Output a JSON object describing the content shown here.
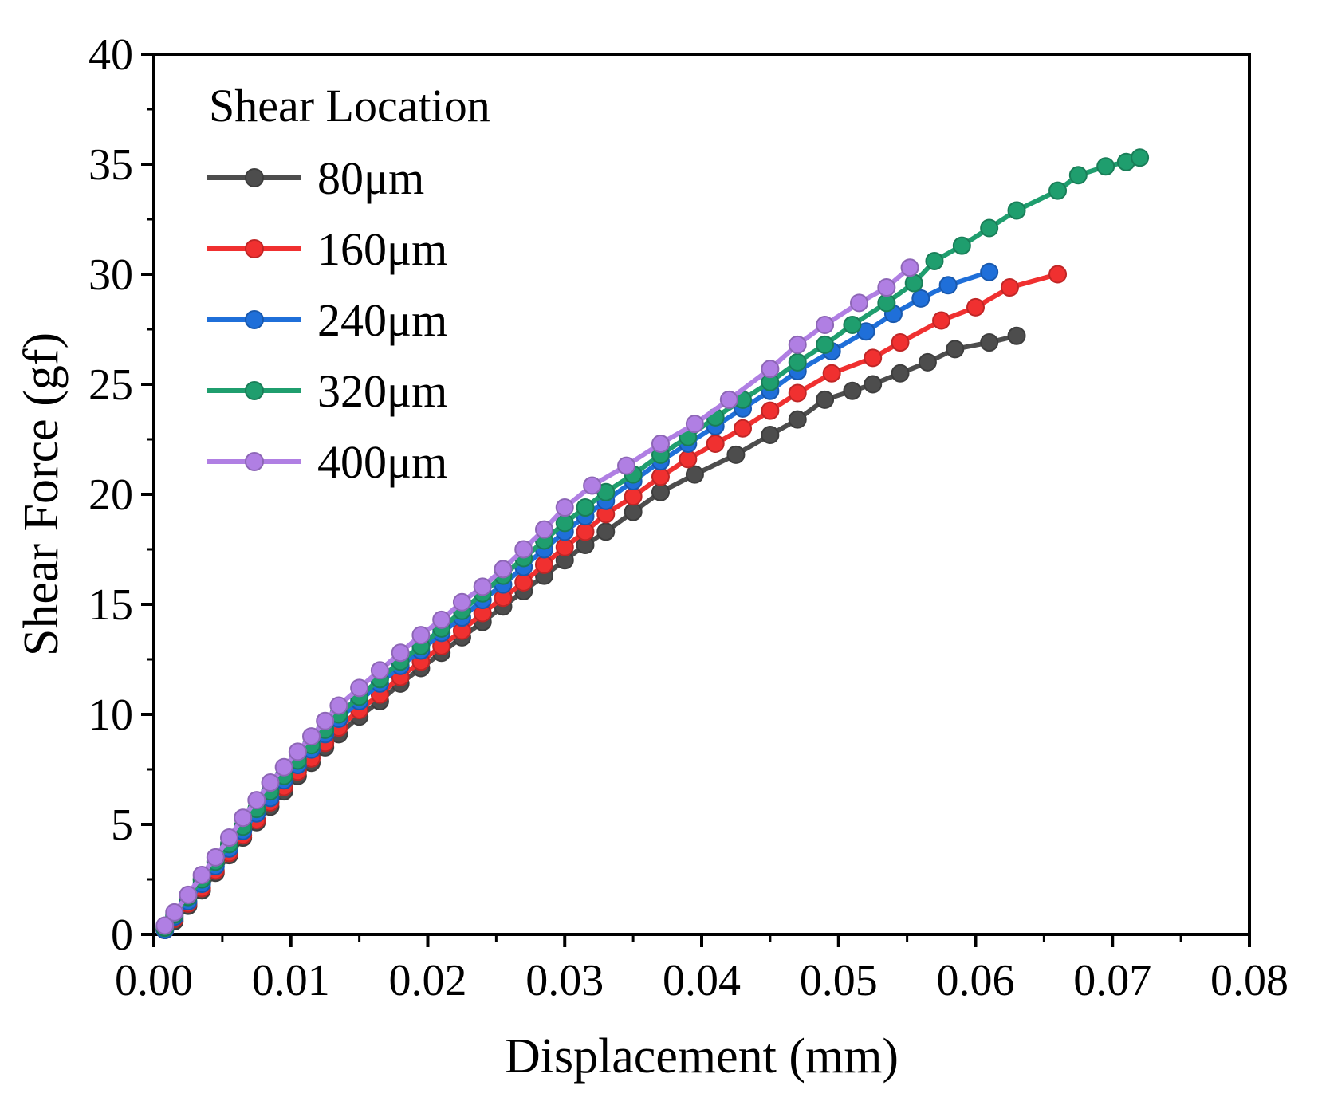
{
  "chart_data": {
    "type": "line",
    "title": "",
    "xlabel": "Displacement (mm)",
    "ylabel": "Shear Force (gf)",
    "xlim": [
      0,
      0.08
    ],
    "ylim": [
      0,
      40
    ],
    "xticks": [
      "0.00",
      "0.01",
      "0.02",
      "0.03",
      "0.04",
      "0.05",
      "0.06",
      "0.07",
      "0.08"
    ],
    "yticks": [
      "0",
      "5",
      "10",
      "15",
      "20",
      "25",
      "30",
      "35",
      "40"
    ],
    "grid": false,
    "legend": {
      "title": "Shear Location",
      "position": "top-left"
    },
    "series": [
      {
        "name": "80μm",
        "color": "#4d4d4d",
        "points": [
          [
            0.0008,
            0.2
          ],
          [
            0.0015,
            0.6
          ],
          [
            0.0025,
            1.3
          ],
          [
            0.0035,
            2.0
          ],
          [
            0.0045,
            2.8
          ],
          [
            0.0055,
            3.6
          ],
          [
            0.0065,
            4.4
          ],
          [
            0.0075,
            5.1
          ],
          [
            0.0085,
            5.8
          ],
          [
            0.0095,
            6.5
          ],
          [
            0.0105,
            7.2
          ],
          [
            0.0115,
            7.8
          ],
          [
            0.0125,
            8.5
          ],
          [
            0.0135,
            9.1
          ],
          [
            0.015,
            9.9
          ],
          [
            0.0165,
            10.6
          ],
          [
            0.018,
            11.4
          ],
          [
            0.0195,
            12.1
          ],
          [
            0.021,
            12.8
          ],
          [
            0.0225,
            13.5
          ],
          [
            0.024,
            14.2
          ],
          [
            0.0255,
            14.9
          ],
          [
            0.027,
            15.6
          ],
          [
            0.0285,
            16.3
          ],
          [
            0.03,
            17.0
          ],
          [
            0.0315,
            17.7
          ],
          [
            0.033,
            18.3
          ],
          [
            0.035,
            19.2
          ],
          [
            0.037,
            20.1
          ],
          [
            0.0395,
            20.9
          ],
          [
            0.0425,
            21.8
          ],
          [
            0.045,
            22.7
          ],
          [
            0.047,
            23.4
          ],
          [
            0.049,
            24.3
          ],
          [
            0.051,
            24.7
          ],
          [
            0.0525,
            25.0
          ],
          [
            0.0545,
            25.5
          ],
          [
            0.0565,
            26.0
          ],
          [
            0.0585,
            26.6
          ],
          [
            0.061,
            26.9
          ],
          [
            0.063,
            27.2
          ]
        ]
      },
      {
        "name": "160μm",
        "color": "#f03030",
        "points": [
          [
            0.0008,
            0.2
          ],
          [
            0.0015,
            0.7
          ],
          [
            0.0025,
            1.4
          ],
          [
            0.0035,
            2.1
          ],
          [
            0.0045,
            2.9
          ],
          [
            0.0055,
            3.7
          ],
          [
            0.0065,
            4.5
          ],
          [
            0.0075,
            5.2
          ],
          [
            0.0085,
            6.0
          ],
          [
            0.0095,
            6.7
          ],
          [
            0.0105,
            7.4
          ],
          [
            0.0115,
            8.0
          ],
          [
            0.0125,
            8.7
          ],
          [
            0.0135,
            9.4
          ],
          [
            0.015,
            10.2
          ],
          [
            0.0165,
            10.9
          ],
          [
            0.018,
            11.7
          ],
          [
            0.0195,
            12.4
          ],
          [
            0.021,
            13.1
          ],
          [
            0.0225,
            13.8
          ],
          [
            0.024,
            14.6
          ],
          [
            0.0255,
            15.3
          ],
          [
            0.027,
            16.0
          ],
          [
            0.0285,
            16.8
          ],
          [
            0.03,
            17.6
          ],
          [
            0.0315,
            18.3
          ],
          [
            0.033,
            19.1
          ],
          [
            0.035,
            19.9
          ],
          [
            0.037,
            20.8
          ],
          [
            0.039,
            21.6
          ],
          [
            0.041,
            22.3
          ],
          [
            0.043,
            23.0
          ],
          [
            0.045,
            23.8
          ],
          [
            0.047,
            24.6
          ],
          [
            0.0495,
            25.5
          ],
          [
            0.0525,
            26.2
          ],
          [
            0.0545,
            26.9
          ],
          [
            0.0575,
            27.9
          ],
          [
            0.06,
            28.5
          ],
          [
            0.0625,
            29.4
          ],
          [
            0.066,
            30.0
          ]
        ]
      },
      {
        "name": "240μm",
        "color": "#1f6fd9",
        "points": [
          [
            0.0008,
            0.2
          ],
          [
            0.0015,
            0.8
          ],
          [
            0.0025,
            1.5
          ],
          [
            0.0035,
            2.3
          ],
          [
            0.0045,
            3.1
          ],
          [
            0.0055,
            3.9
          ],
          [
            0.0065,
            4.7
          ],
          [
            0.0075,
            5.5
          ],
          [
            0.0085,
            6.2
          ],
          [
            0.0095,
            7.0
          ],
          [
            0.0105,
            7.7
          ],
          [
            0.0115,
            8.4
          ],
          [
            0.0125,
            9.1
          ],
          [
            0.0135,
            9.8
          ],
          [
            0.015,
            10.6
          ],
          [
            0.0165,
            11.4
          ],
          [
            0.018,
            12.2
          ],
          [
            0.0195,
            12.9
          ],
          [
            0.021,
            13.7
          ],
          [
            0.0225,
            14.4
          ],
          [
            0.024,
            15.2
          ],
          [
            0.0255,
            15.9
          ],
          [
            0.027,
            16.7
          ],
          [
            0.0285,
            17.5
          ],
          [
            0.03,
            18.3
          ],
          [
            0.0315,
            19.0
          ],
          [
            0.033,
            19.7
          ],
          [
            0.035,
            20.6
          ],
          [
            0.037,
            21.5
          ],
          [
            0.039,
            22.3
          ],
          [
            0.041,
            23.1
          ],
          [
            0.043,
            23.9
          ],
          [
            0.045,
            24.7
          ],
          [
            0.047,
            25.6
          ],
          [
            0.0495,
            26.5
          ],
          [
            0.052,
            27.4
          ],
          [
            0.054,
            28.2
          ],
          [
            0.056,
            28.9
          ],
          [
            0.058,
            29.5
          ],
          [
            0.061,
            30.1
          ]
        ]
      },
      {
        "name": "320μm",
        "color": "#1f9e6e",
        "points": [
          [
            0.0008,
            0.3
          ],
          [
            0.0015,
            0.9
          ],
          [
            0.0025,
            1.7
          ],
          [
            0.0035,
            2.5
          ],
          [
            0.0045,
            3.3
          ],
          [
            0.0055,
            4.1
          ],
          [
            0.0065,
            4.9
          ],
          [
            0.0075,
            5.7
          ],
          [
            0.0085,
            6.5
          ],
          [
            0.0095,
            7.2
          ],
          [
            0.0105,
            7.9
          ],
          [
            0.0115,
            8.6
          ],
          [
            0.0125,
            9.3
          ],
          [
            0.0135,
            10.0
          ],
          [
            0.015,
            10.8
          ],
          [
            0.0165,
            11.6
          ],
          [
            0.018,
            12.4
          ],
          [
            0.0195,
            13.1
          ],
          [
            0.021,
            13.9
          ],
          [
            0.0225,
            14.7
          ],
          [
            0.024,
            15.5
          ],
          [
            0.0255,
            16.3
          ],
          [
            0.027,
            17.1
          ],
          [
            0.0285,
            17.9
          ],
          [
            0.03,
            18.7
          ],
          [
            0.0315,
            19.4
          ],
          [
            0.033,
            20.1
          ],
          [
            0.035,
            20.9
          ],
          [
            0.037,
            21.8
          ],
          [
            0.039,
            22.6
          ],
          [
            0.041,
            23.5
          ],
          [
            0.043,
            24.3
          ],
          [
            0.045,
            25.1
          ],
          [
            0.047,
            26.0
          ],
          [
            0.049,
            26.8
          ],
          [
            0.051,
            27.7
          ],
          [
            0.0535,
            28.7
          ],
          [
            0.0555,
            29.6
          ],
          [
            0.057,
            30.6
          ],
          [
            0.059,
            31.3
          ],
          [
            0.061,
            32.1
          ],
          [
            0.063,
            32.9
          ],
          [
            0.066,
            33.8
          ],
          [
            0.0675,
            34.5
          ],
          [
            0.0695,
            34.9
          ],
          [
            0.071,
            35.1
          ],
          [
            0.072,
            35.3
          ]
        ]
      },
      {
        "name": "400μm",
        "color": "#b07fe3",
        "points": [
          [
            0.0008,
            0.4
          ],
          [
            0.0015,
            1.0
          ],
          [
            0.0025,
            1.8
          ],
          [
            0.0035,
            2.7
          ],
          [
            0.0045,
            3.5
          ],
          [
            0.0055,
            4.4
          ],
          [
            0.0065,
            5.3
          ],
          [
            0.0075,
            6.1
          ],
          [
            0.0085,
            6.9
          ],
          [
            0.0095,
            7.6
          ],
          [
            0.0105,
            8.3
          ],
          [
            0.0115,
            9.0
          ],
          [
            0.0125,
            9.7
          ],
          [
            0.0135,
            10.4
          ],
          [
            0.015,
            11.2
          ],
          [
            0.0165,
            12.0
          ],
          [
            0.018,
            12.8
          ],
          [
            0.0195,
            13.6
          ],
          [
            0.021,
            14.3
          ],
          [
            0.0225,
            15.1
          ],
          [
            0.024,
            15.8
          ],
          [
            0.0255,
            16.6
          ],
          [
            0.027,
            17.5
          ],
          [
            0.0285,
            18.4
          ],
          [
            0.03,
            19.4
          ],
          [
            0.032,
            20.4
          ],
          [
            0.0345,
            21.3
          ],
          [
            0.037,
            22.3
          ],
          [
            0.0395,
            23.2
          ],
          [
            0.042,
            24.3
          ],
          [
            0.045,
            25.7
          ],
          [
            0.047,
            26.8
          ],
          [
            0.049,
            27.7
          ],
          [
            0.0515,
            28.7
          ],
          [
            0.0535,
            29.4
          ],
          [
            0.0552,
            30.3
          ]
        ]
      }
    ]
  }
}
